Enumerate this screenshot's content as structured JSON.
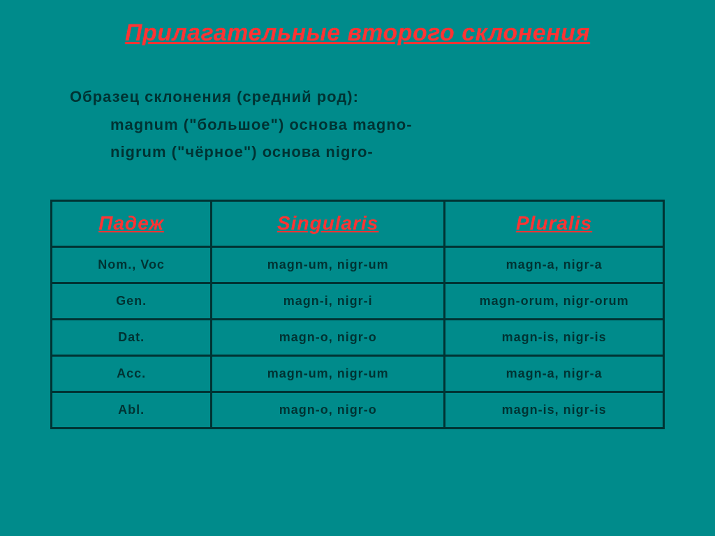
{
  "title": "Прилагательные второго склонения",
  "subtitle": {
    "line1": "Образец склонения (средний род):",
    "line2": "magnum (\"большое\") основа magno-",
    "line3": "nigrum (\"чёрное\") основа nigro-"
  },
  "table": {
    "headers": [
      "Падеж",
      "Singularis",
      "Pluralis"
    ],
    "rows": [
      [
        "Nom., Voc",
        "magn-um, nigr-um",
        "magn-a, nigr-a"
      ],
      [
        "Gen.",
        "magn-i, nigr-i",
        "magn-orum, nigr-orum"
      ],
      [
        "Dat.",
        "magn-o, nigr-o",
        "magn-is, nigr-is"
      ],
      [
        "Acc.",
        "magn-um, nigr-um",
        "magn-a, nigr-a"
      ],
      [
        "Abl.",
        "magn-o, nigr-o",
        "magn-is, nigr-is"
      ]
    ]
  },
  "colors": {
    "background": "#008b8b",
    "accent_red": "#ff3333",
    "dark_teal": "#003333"
  }
}
